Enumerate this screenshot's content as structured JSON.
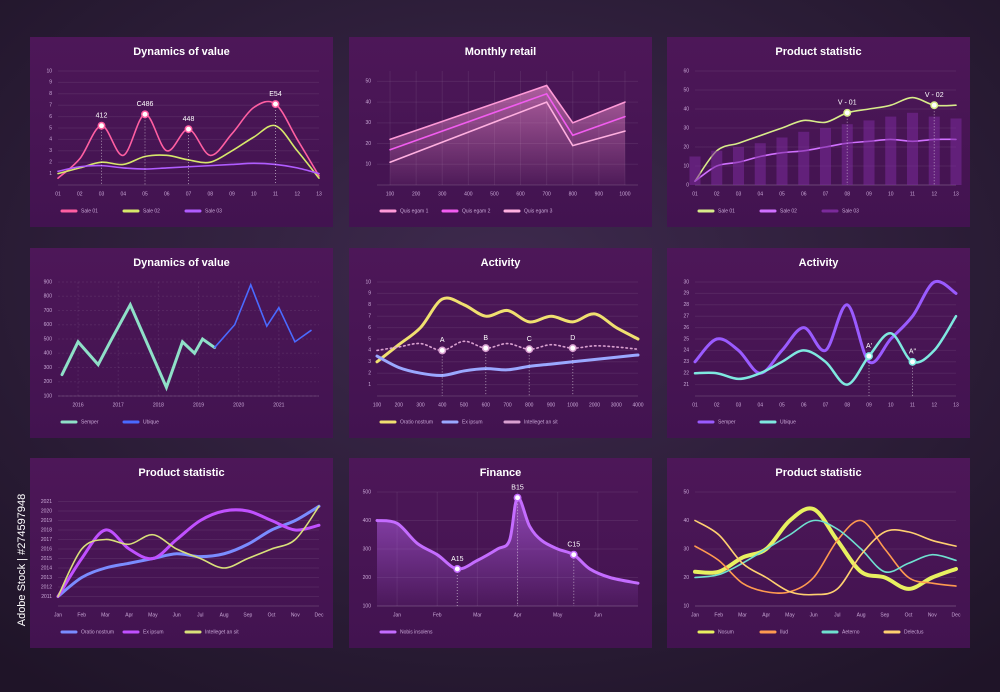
{
  "stock_id": "Adobe Stock | #274597948",
  "chart_data": [
    {
      "type": "line",
      "title": "Dynamics of value",
      "smooth": true,
      "grid": true,
      "categories": [
        "01",
        "02",
        "03",
        "04",
        "05",
        "06",
        "07",
        "08",
        "09",
        "10",
        "11",
        "12",
        "13"
      ],
      "ylim": [
        0,
        10
      ],
      "yticks": [
        1,
        2,
        3,
        4,
        5,
        6,
        7,
        8,
        9,
        10
      ],
      "annotations": [
        "412",
        "C486",
        "448",
        "E54"
      ],
      "series": [
        {
          "name": "Sale 01",
          "color": "#ff5fa2",
          "values": [
            0.6,
            2.3,
            5.2,
            2.6,
            6.2,
            3,
            4.9,
            2.6,
            4.5,
            6.8,
            7.1,
            4,
            0.8
          ]
        },
        {
          "name": "Sale 02",
          "color": "#d7e86a",
          "values": [
            1,
            1.5,
            2,
            1.8,
            2.5,
            2.6,
            2.2,
            2,
            3,
            4.2,
            5.2,
            3,
            0.6
          ]
        },
        {
          "name": "Sale 03",
          "color": "#b05cff",
          "values": [
            1.2,
            1.6,
            1.7,
            1.5,
            1.4,
            1.5,
            1.6,
            1.7,
            1.8,
            1.9,
            1.8,
            1.5,
            1
          ]
        }
      ]
    },
    {
      "type": "line",
      "title": "Monthly retail",
      "smooth": false,
      "grid": true,
      "x": [
        100,
        700,
        800,
        1000
      ],
      "xlim": [
        50,
        1050
      ],
      "xticks": [
        100,
        200,
        300,
        400,
        500,
        600,
        700,
        800,
        900,
        1000
      ],
      "ylim": [
        0,
        55
      ],
      "yticks": [
        10,
        20,
        30,
        40,
        50
      ],
      "series": [
        {
          "name": "Quis egam 1",
          "color": "#ff9ad8",
          "fill": true,
          "values": [
            22,
            48,
            30,
            40
          ]
        },
        {
          "name": "Quis egam 2",
          "color": "#f25cf0",
          "values": [
            17,
            44,
            24,
            33
          ]
        },
        {
          "name": "Quis egam 3",
          "color": "#ffb0e0",
          "values": [
            11,
            40,
            19,
            26
          ]
        }
      ]
    },
    {
      "type": "line",
      "title": "Product statistic",
      "smooth": true,
      "grid": true,
      "categories": [
        "01",
        "02",
        "03",
        "04",
        "05",
        "06",
        "07",
        "08",
        "09",
        "10",
        "11",
        "12",
        "13"
      ],
      "ylim": [
        0,
        60
      ],
      "yticks": [
        0,
        10,
        20,
        30,
        40,
        50,
        60
      ],
      "annotations": [
        "V - 01",
        "V - 02"
      ],
      "series": [
        {
          "name": "Sale 01",
          "color": "#d8ec8a",
          "values": [
            2,
            18,
            22,
            26,
            30,
            34,
            33,
            38,
            40,
            42,
            46,
            42,
            42
          ]
        },
        {
          "name": "Sale 02",
          "color": "#d070ff",
          "values": [
            2,
            10,
            12,
            15,
            17,
            18,
            20,
            22,
            23,
            24,
            23,
            24,
            24
          ]
        },
        {
          "name": "Sale 03",
          "color": "#7a2a9a",
          "kind": "bar",
          "values": [
            15,
            18,
            20,
            22,
            25,
            28,
            30,
            32,
            34,
            36,
            38,
            36,
            35
          ]
        }
      ]
    },
    {
      "type": "line",
      "title": "Dynamics of value",
      "smooth": false,
      "grid": true,
      "grid_dashed": true,
      "xlim": [
        2015.5,
        2022
      ],
      "xticks": [
        2016,
        2017,
        2018,
        2019,
        2020,
        2021
      ],
      "ylim": [
        100,
        900
      ],
      "yticks": [
        100,
        200,
        300,
        400,
        500,
        600,
        700,
        800,
        900
      ],
      "series": [
        {
          "name": "Semper",
          "color": "#8fe0c8",
          "width": 3,
          "x": [
            2015.6,
            2016,
            2016.5,
            2016.8,
            2017.3,
            2018.2,
            2018.6,
            2018.9,
            2019.1,
            2019.4
          ],
          "values": [
            250,
            480,
            320,
            480,
            740,
            160,
            480,
            400,
            500,
            440
          ]
        },
        {
          "name": "Ubique",
          "color": "#4a6aff",
          "x": [
            2019.4,
            2019.9,
            2020.3,
            2020.7,
            2021,
            2021.4,
            2021.8
          ],
          "values": [
            440,
            600,
            880,
            590,
            720,
            480,
            560
          ]
        }
      ]
    },
    {
      "type": "line",
      "title": "Activity",
      "smooth": true,
      "grid": true,
      "categories": [
        "100",
        "200",
        "300",
        "400",
        "500",
        "600",
        "700",
        "800",
        "900",
        "1000",
        "2000",
        "3000",
        "4000"
      ],
      "ylim": [
        0,
        10
      ],
      "yticks": [
        1,
        2,
        3,
        4,
        5,
        6,
        7,
        8,
        9,
        10
      ],
      "annotations": [
        "A",
        "B",
        "C",
        "D"
      ],
      "series": [
        {
          "name": "Oratio nostrum",
          "color": "#f0e070",
          "width": 3,
          "values": [
            3,
            4.5,
            6,
            8.5,
            8,
            7,
            7.5,
            6.5,
            7,
            6.5,
            7.2,
            6,
            5
          ]
        },
        {
          "name": "Ex ipsum",
          "color": "#9aa8ff",
          "width": 3,
          "values": [
            3.5,
            2.5,
            2,
            1.8,
            2.2,
            2.4,
            2.3,
            2.6,
            2.8,
            3,
            3.2,
            3.4,
            3.6
          ]
        },
        {
          "name": "Intelleget an sit",
          "color": "#d9a0d0",
          "dashed": true,
          "values": [
            4,
            4.3,
            4.6,
            4,
            4.8,
            4.2,
            4.6,
            4.1,
            4.5,
            4.2,
            4.4,
            4.3,
            4.1
          ]
        }
      ]
    },
    {
      "type": "line",
      "title": "Activity",
      "smooth": true,
      "grid": true,
      "categories": [
        "01",
        "02",
        "03",
        "04",
        "05",
        "06",
        "07",
        "08",
        "09",
        "10",
        "11",
        "12",
        "13"
      ],
      "ylim": [
        20,
        30
      ],
      "yticks": [
        21,
        22,
        23,
        24,
        25,
        26,
        27,
        28,
        29,
        30
      ],
      "annotations": [
        "A'",
        "A''"
      ],
      "series": [
        {
          "name": "Semper",
          "color": "#9a5bff",
          "width": 3,
          "values": [
            23,
            25,
            24,
            22,
            24,
            26,
            24,
            28,
            23,
            25,
            27,
            30,
            29
          ]
        },
        {
          "name": "Ubique",
          "color": "#7fe8e0",
          "width": 2.5,
          "values": [
            22,
            22,
            21.5,
            22,
            23,
            24,
            23,
            21,
            23.5,
            25.5,
            23,
            24,
            27
          ]
        }
      ]
    },
    {
      "type": "line",
      "title": "Product statistic",
      "smooth": true,
      "grid": true,
      "categories": [
        "Jan",
        "Feb",
        "Mar",
        "Apr",
        "May",
        "Jun",
        "Jul",
        "Aug",
        "Sep",
        "Oct",
        "Nov",
        "Dec"
      ],
      "ylim": [
        2010,
        2022
      ],
      "yticks": [
        2011,
        2012,
        2013,
        2014,
        2015,
        2016,
        2017,
        2018,
        2019,
        2020,
        2021
      ],
      "series": [
        {
          "name": "Oratio nostrum",
          "color": "#7a8cff",
          "width": 3,
          "values": [
            2011,
            2013,
            2014,
            2014.5,
            2015,
            2015.5,
            2015.2,
            2015.5,
            2016.5,
            2018,
            2019,
            2020.5
          ]
        },
        {
          "name": "Ex ipsum",
          "color": "#c050ff",
          "width": 3,
          "values": [
            2011,
            2015,
            2018,
            2016,
            2015,
            2017,
            2019,
            2020,
            2020,
            2019,
            2018,
            2018.5
          ]
        },
        {
          "name": "Intelleget an sit",
          "color": "#d9e07a",
          "values": [
            2011,
            2016,
            2017,
            2016.5,
            2017.5,
            2016,
            2015,
            2014,
            2015,
            2016,
            2017,
            2020.5
          ]
        }
      ]
    },
    {
      "type": "line",
      "title": "Finance",
      "smooth": true,
      "grid": true,
      "x": [
        0.5,
        1,
        1.5,
        2,
        2.5,
        3,
        3.5,
        3.8,
        4,
        4.3,
        4.6,
        5,
        5.4,
        5.8,
        6.3,
        7
      ],
      "xlim": [
        0.5,
        7
      ],
      "xticks": [
        {
          "value": 1,
          "label": "Jan"
        },
        {
          "value": 2,
          "label": "Feb"
        },
        {
          "value": 3,
          "label": "Mar"
        },
        {
          "value": 4,
          "label": "Apr"
        },
        {
          "value": 5,
          "label": "May"
        },
        {
          "value": 6,
          "label": "Jun"
        }
      ],
      "ylim": [
        100,
        500
      ],
      "yticks": [
        100,
        200,
        300,
        400,
        500
      ],
      "annotations": [
        "A15",
        "B15",
        "C15"
      ],
      "series": [
        {
          "name": "Nobis insolens",
          "color": "#c46cff",
          "width": 3,
          "fill": true,
          "values": [
            400,
            390,
            320,
            280,
            230,
            260,
            300,
            330,
            480,
            380,
            330,
            300,
            280,
            230,
            200,
            180
          ]
        }
      ]
    },
    {
      "type": "line",
      "title": "Product statistic",
      "smooth": true,
      "grid": true,
      "categories": [
        "Jan",
        "Feb",
        "Mar",
        "Apr",
        "May",
        "Jun",
        "Jul",
        "Aug",
        "Sep",
        "Oct",
        "Nov",
        "Dec"
      ],
      "ylim": [
        10,
        50
      ],
      "yticks": [
        10,
        20,
        30,
        40,
        50
      ],
      "series": [
        {
          "name": "Nosum",
          "color": "#e8f060",
          "width": 4,
          "values": [
            22,
            22,
            27,
            30,
            40,
            44,
            33,
            22,
            20,
            16,
            20,
            23
          ]
        },
        {
          "name": "Ilud",
          "color": "#ff9a50",
          "values": [
            31,
            26,
            18,
            15,
            15,
            20,
            33,
            40,
            30,
            20,
            18,
            17
          ]
        },
        {
          "name": "Aeterno",
          "color": "#6fe0d0",
          "values": [
            20,
            21,
            25,
            30,
            35,
            40,
            37,
            30,
            22,
            25,
            28,
            26
          ]
        },
        {
          "name": "Delectus",
          "color": "#ffd070",
          "values": [
            40,
            35,
            25,
            20,
            15,
            14,
            16,
            28,
            36,
            36,
            33,
            31
          ]
        }
      ]
    }
  ]
}
